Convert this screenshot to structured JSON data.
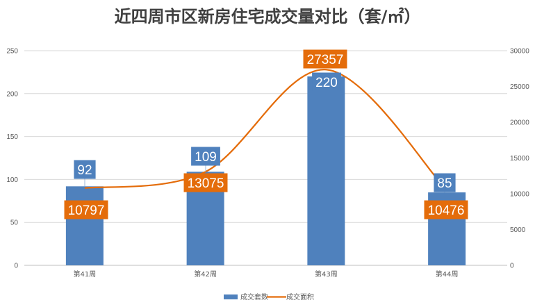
{
  "chart_data": {
    "type": "bar",
    "title": "近四周市区新房住宅成交量对比（套/㎡）",
    "categories": [
      "第41周",
      "第42周",
      "第43周",
      "第44周"
    ],
    "series": [
      {
        "name": "成交套数",
        "kind": "bar",
        "axis": "left",
        "values": [
          92,
          109,
          220,
          85
        ],
        "color": "#4F81BD"
      },
      {
        "name": "成交面积",
        "kind": "line",
        "axis": "right",
        "values": [
          10797,
          13075,
          27357,
          10476
        ],
        "color": "#E46C0A"
      }
    ],
    "y_left": {
      "lim": [
        0,
        250
      ],
      "ticks": [
        "0",
        "50",
        "100",
        "150",
        "200",
        "250"
      ]
    },
    "y_right": {
      "lim": [
        0,
        30000
      ],
      "ticks": [
        "0",
        "5000",
        "10000",
        "15000",
        "20000",
        "25000",
        "30000"
      ]
    },
    "grid": true,
    "legend_position": "bottom"
  }
}
